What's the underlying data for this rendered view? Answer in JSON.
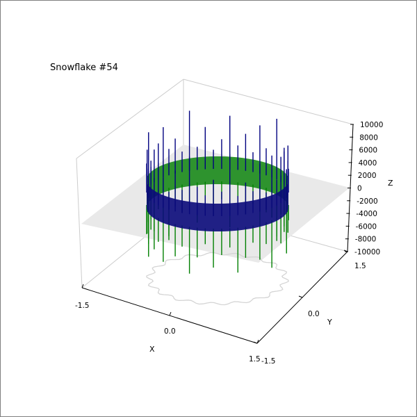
{
  "chart_data": {
    "type": "bar",
    "title": "Snowflake #54",
    "xlabel": "X",
    "ylabel": "Y",
    "zlabel": "Z",
    "x_ticks": [
      "-1.5",
      "0.0",
      "1.5"
    ],
    "y_ticks": [
      "-1.5",
      "0.0",
      "1.5"
    ],
    "z_ticks": [
      "10000",
      "8000",
      "6000",
      "4000",
      "2000",
      "0",
      "-2000",
      "-4000",
      "-6000",
      "-8000",
      "-10000"
    ],
    "xlim": [
      -1.5,
      1.5
    ],
    "ylim": [
      -1.5,
      1.5
    ],
    "zlim": [
      -10000,
      10000
    ],
    "grid": true,
    "series": [
      {
        "color": "#00007f",
        "sign": "positive",
        "values": [
          3600,
          5200,
          2800,
          8000,
          4200,
          3900,
          5800,
          2600,
          7200,
          3300,
          4800,
          2900,
          9300,
          3700,
          5500,
          3100,
          4300,
          8700,
          3500,
          6200,
          2700,
          4600,
          9400,
          3800,
          5100,
          2800,
          6900,
          4400,
          3200,
          8300,
          3600,
          4900,
          2600,
          7600,
          4000,
          5300,
          3100,
          9100,
          3500,
          6400,
          2900,
          4500,
          8100,
          3700,
          5600,
          3000,
          7300,
          4100,
          3300,
          9200,
          3800,
          5000,
          2700,
          6700
        ]
      },
      {
        "color": "#007f00",
        "sign": "negative",
        "values": [
          -4200,
          -5600,
          -8400,
          -3900,
          -6100,
          -4700,
          -9100,
          -5200,
          -7300,
          -4500,
          -6600,
          -8700,
          -4800,
          -5900,
          -7800,
          -4300,
          -6400,
          -9000,
          -5100,
          -6800,
          -4600,
          -8200,
          -5500,
          -7000,
          -4400,
          -8900,
          -5800,
          -6300,
          -4900,
          -8600,
          -5300,
          -7500,
          -4500,
          -6900,
          -9200,
          -5000,
          -6200,
          -4700,
          -8000,
          -5700,
          -7100,
          -4600,
          -8800,
          -5400,
          -6600,
          -4800,
          -7700,
          -5600,
          -6100,
          -9300,
          -5000,
          -7200,
          -4400,
          -6500
        ]
      }
    ]
  }
}
